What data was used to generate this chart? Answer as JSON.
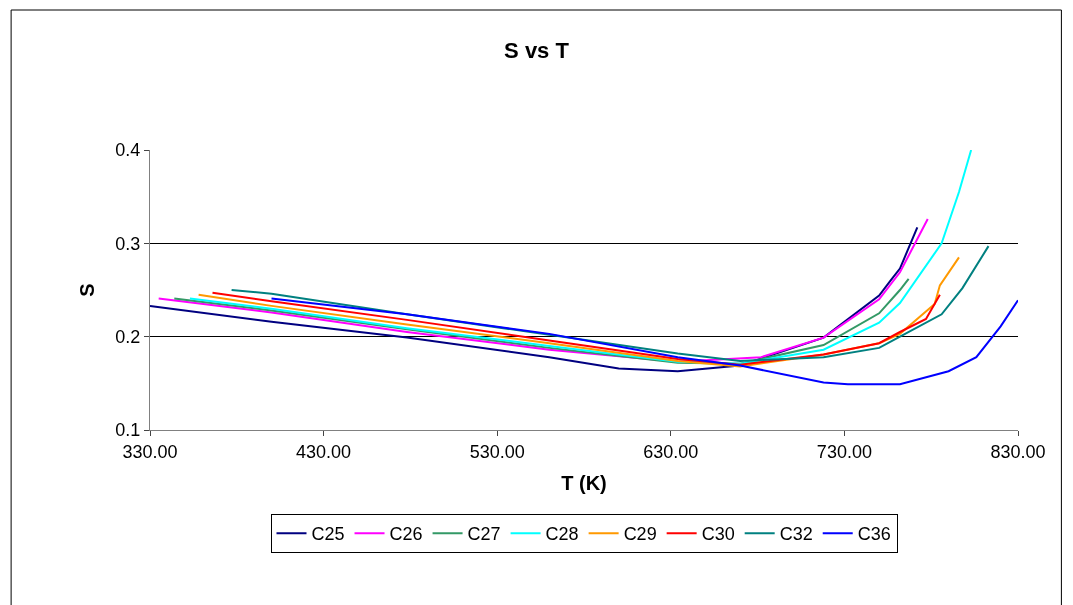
{
  "chart_data": {
    "type": "line",
    "title": "S vs T",
    "xlabel": "T (K)",
    "ylabel": "S",
    "xlim": [
      330,
      830
    ],
    "xticks": [
      {
        "value": 330,
        "label": "330.00"
      },
      {
        "value": 430,
        "label": "430.00"
      },
      {
        "value": 530,
        "label": "530.00"
      },
      {
        "value": 630,
        "label": "630.00"
      },
      {
        "value": 730,
        "label": "730.00"
      },
      {
        "value": 830,
        "label": "830.00"
      }
    ],
    "ylim": [
      0.1,
      0.4
    ],
    "yticks": [
      0.1,
      0.2,
      0.3,
      0.4
    ],
    "grid": "y",
    "legend": "bottom",
    "marker": "none",
    "line_style": "solid",
    "series": [
      {
        "name": "C25",
        "color": "#000080",
        "x": [
          330,
          400,
          478,
          560,
          600,
          634,
          670,
          718,
          750,
          757,
          762,
          772
        ],
        "values": [
          0.233,
          0.216,
          0.199,
          0.178,
          0.166,
          0.163,
          0.169,
          0.199,
          0.244,
          0.261,
          0.273,
          0.317
        ]
      },
      {
        "name": "C26",
        "color": "#ff00ff",
        "x": [
          335,
          400,
          478,
          560,
          634,
          682,
          718,
          750,
          762,
          778
        ],
        "values": [
          0.241,
          0.226,
          0.205,
          0.186,
          0.173,
          0.178,
          0.199,
          0.24,
          0.269,
          0.326
        ]
      },
      {
        "name": "C27",
        "color": "#339966",
        "x": [
          344,
          400,
          478,
          560,
          634,
          670,
          718,
          750,
          762,
          767
        ],
        "values": [
          0.241,
          0.228,
          0.208,
          0.188,
          0.172,
          0.171,
          0.191,
          0.225,
          0.25,
          0.262
        ]
      },
      {
        "name": "C28",
        "color": "#00ffff",
        "x": [
          353,
          400,
          478,
          560,
          634,
          670,
          718,
          750,
          762,
          786,
          796,
          803
        ],
        "values": [
          0.241,
          0.23,
          0.209,
          0.19,
          0.173,
          0.171,
          0.186,
          0.215,
          0.236,
          0.3,
          0.355,
          0.4
        ]
      },
      {
        "name": "C29",
        "color": "#ff9900",
        "x": [
          358,
          400,
          478,
          560,
          634,
          670,
          718,
          750,
          762,
          782,
          785,
          796
        ],
        "values": [
          0.245,
          0.233,
          0.213,
          0.193,
          0.174,
          0.168,
          0.181,
          0.193,
          0.203,
          0.235,
          0.255,
          0.285
        ]
      },
      {
        "name": "C30",
        "color": "#ff0000",
        "x": [
          366,
          400,
          478,
          560,
          634,
          670,
          718,
          750,
          762,
          777,
          785
        ],
        "values": [
          0.247,
          0.238,
          0.218,
          0.196,
          0.176,
          0.17,
          0.181,
          0.193,
          0.205,
          0.219,
          0.245
        ]
      },
      {
        "name": "C32",
        "color": "#008080",
        "x": [
          377,
          400,
          478,
          560,
          634,
          670,
          718,
          750,
          762,
          786,
          798,
          813
        ],
        "values": [
          0.25,
          0.246,
          0.224,
          0.202,
          0.182,
          0.174,
          0.178,
          0.188,
          0.2,
          0.224,
          0.252,
          0.297
        ]
      },
      {
        "name": "C36",
        "color": "#0000ff",
        "x": [
          400,
          478,
          560,
          634,
          670,
          718,
          732,
          762,
          790,
          806,
          820,
          830
        ],
        "values": [
          0.241,
          0.224,
          0.203,
          0.178,
          0.169,
          0.151,
          0.149,
          0.149,
          0.163,
          0.178,
          0.211,
          0.239
        ]
      }
    ]
  }
}
